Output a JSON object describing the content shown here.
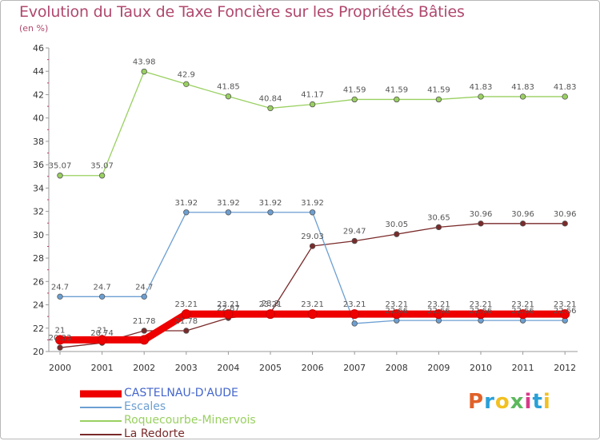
{
  "chart_data": {
    "type": "line",
    "title": "Evolution du Taux de Taxe Foncière sur les Propriétés Bâties",
    "ylabel": "(en %)",
    "xlabel": "",
    "ylim": [
      20,
      46
    ],
    "yticks": [
      "20",
      "22",
      "24",
      "26",
      "28",
      "30",
      "32",
      "34",
      "36",
      "38",
      "40",
      "42",
      "44",
      "46"
    ],
    "categories": [
      "2000",
      "2001",
      "2002",
      "2003",
      "2004",
      "2005",
      "2006",
      "2007",
      "2008",
      "2009",
      "2010",
      "2011",
      "2012"
    ],
    "grid": false,
    "legend_position": "bottom-left",
    "series": [
      {
        "name": "CASTELNAU-D'AUDE",
        "color": "#ee0000",
        "values": [
          21,
          21,
          21,
          23.21,
          23.21,
          23.21,
          23.21,
          23.21,
          23.21,
          23.21,
          23.21,
          23.21,
          23.21
        ],
        "labels": [
          "21",
          "21",
          "",
          "23.21",
          "23.21",
          "23.21",
          "23.21",
          "23.21",
          "23.21",
          "23.21",
          "23.21",
          "23.21",
          "23.21"
        ]
      },
      {
        "name": "Escales",
        "color": "#6c9fd2",
        "values": [
          24.7,
          24.7,
          24.7,
          31.92,
          31.92,
          31.92,
          31.92,
          22.4,
          22.66,
          22.66,
          22.66,
          22.66,
          22.66
        ],
        "labels": [
          "24.7",
          "24.7",
          "24.7",
          "31.92",
          "31.92",
          "31.92",
          "31.92",
          "",
          "22.66",
          "22.66",
          "22.66",
          "22.66",
          "22.66"
        ]
      },
      {
        "name": "Roquecourbe-Minervois",
        "color": "#99d060",
        "values": [
          35.07,
          35.07,
          43.98,
          42.9,
          41.85,
          40.84,
          41.17,
          41.59,
          41.59,
          41.59,
          41.83,
          41.83,
          41.83
        ],
        "labels": [
          "35.07",
          "35.07",
          "43.98",
          "42.9",
          "41.85",
          "40.84",
          "41.17",
          "41.59",
          "41.59",
          "41.59",
          "41.83",
          "41.83",
          "41.83"
        ]
      },
      {
        "name": "La Redorte",
        "color": "#7a2a2a",
        "values": [
          20.33,
          20.74,
          21.78,
          21.78,
          22.87,
          23.3,
          29.03,
          29.47,
          30.05,
          30.65,
          30.96,
          30.96,
          30.96
        ],
        "labels": [
          "20.33",
          "20.74",
          "21.78",
          "21.78",
          "22.87",
          "23.3",
          "29.03",
          "29.47",
          "30.05",
          "30.65",
          "30.96",
          "30.96",
          "30.96"
        ]
      }
    ]
  },
  "logo": {
    "text": "Proxiti",
    "colors": [
      "#e0622a",
      "#2aa0d8",
      "#f2c020",
      "#5cb85c",
      "#d83a8a",
      "#2aa0d8",
      "#f2c020"
    ]
  }
}
